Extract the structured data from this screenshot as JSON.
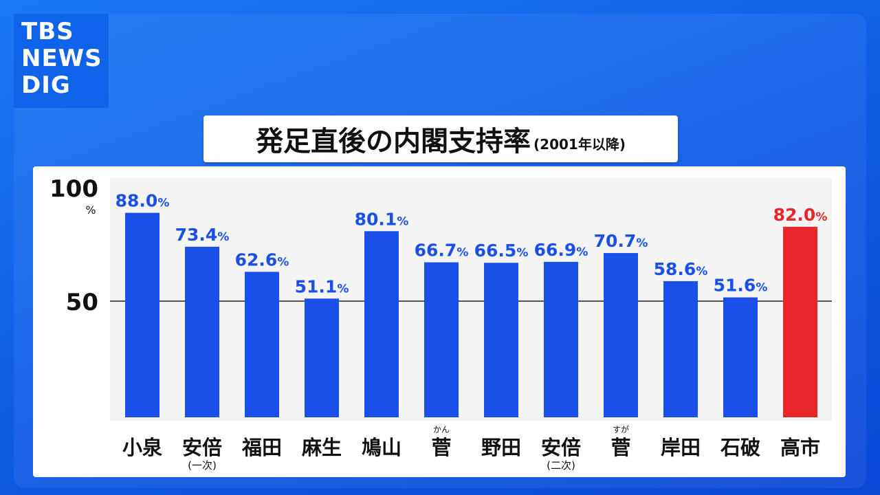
{
  "logo": {
    "line1": "TBS",
    "line2": "NEWS",
    "line3": "DIG"
  },
  "title": {
    "main": "発足直後の内閣支持率",
    "sub": "(2001年以降)"
  },
  "colors": {
    "bar": "#1a4fe8",
    "highlight": "#e8262a",
    "label": "#1a4fe8",
    "highlight_label": "#e8262a"
  },
  "chart_data": {
    "type": "bar",
    "title": "発足直後の内閣支持率(2001年以降)",
    "categories": [
      "小泉",
      "安倍",
      "福田",
      "麻生",
      "鳩山",
      "菅",
      "野田",
      "安倍",
      "菅",
      "岸田",
      "石破",
      "高市"
    ],
    "category_notes": [
      "",
      "(一次)",
      "",
      "",
      "",
      "",
      "",
      "(二次)",
      "",
      "",
      "",
      ""
    ],
    "category_ruby": [
      "",
      "",
      "",
      "",
      "",
      "かん",
      "",
      "",
      "すが",
      "",
      "",
      ""
    ],
    "values": [
      88.0,
      73.4,
      62.6,
      51.1,
      80.1,
      66.7,
      66.5,
      66.9,
      70.7,
      58.6,
      51.6,
      82.0
    ],
    "value_labels": [
      "88.0",
      "73.4",
      "62.6",
      "51.1",
      "80.1",
      "66.7",
      "66.5",
      "66.9",
      "70.7",
      "58.6",
      "51.6",
      "82.0"
    ],
    "value_unit": "%",
    "highlight_index": 11,
    "yticks": [
      "100",
      "50"
    ],
    "ylabel_unit": "%",
    "ylim": [
      0,
      100
    ],
    "reference_line": 50,
    "grid": false,
    "legend": "none"
  }
}
